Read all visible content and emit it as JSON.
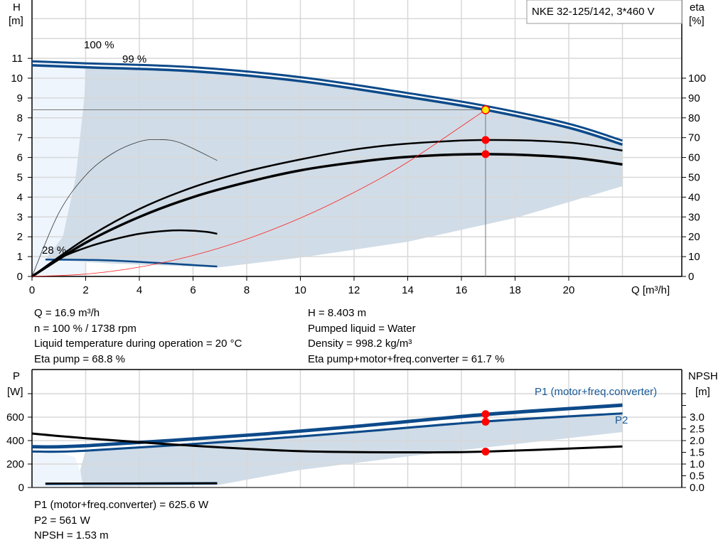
{
  "chart_data": [
    {
      "type": "line",
      "title": "NKE 32-125/142, 3*460 V",
      "xlabel": "Q [m³/h]",
      "ylabel": "H",
      "ylabel_unit": "[m]",
      "y2label": "eta",
      "y2label_unit": "[%]",
      "xlim": [
        0,
        23.5
      ],
      "ylim": [
        0,
        14
      ],
      "y2lim": [
        0,
        140
      ],
      "x_ticks": [
        "0",
        "2",
        "4",
        "6",
        "8",
        "10",
        "12",
        "14",
        "16",
        "18",
        "20"
      ],
      "y_ticks": [
        "0",
        "1",
        "2",
        "3",
        "4",
        "5",
        "6",
        "7",
        "8",
        "9",
        "10",
        "11"
      ],
      "y2_ticks": [
        "0",
        "10",
        "20",
        "30",
        "40",
        "50",
        "60",
        "70",
        "80",
        "90",
        "100"
      ],
      "grid": true,
      "annotations": [
        "100 %",
        "99 %",
        "28 %"
      ],
      "series": [
        {
          "id": "qh100",
          "axis": "H",
          "color": "#0d4a8a",
          "points": [
            [
              0,
              10.85
            ],
            [
              2,
              10.75
            ],
            [
              6,
              10.55
            ],
            [
              10,
              10.05
            ],
            [
              14,
              9.25
            ],
            [
              16.9,
              8.6
            ],
            [
              20,
              7.7
            ],
            [
              22,
              6.85
            ]
          ]
        },
        {
          "id": "qh99",
          "axis": "H",
          "color": "#0d4a8a",
          "points": [
            [
              0,
              10.65
            ],
            [
              2,
              10.55
            ],
            [
              6,
              10.35
            ],
            [
              10,
              9.85
            ],
            [
              14,
              9.05
            ],
            [
              16.9,
              8.403
            ],
            [
              20,
              7.5
            ],
            [
              22,
              6.65
            ]
          ]
        },
        {
          "id": "qh28",
          "axis": "H",
          "color": "#0d4a8a",
          "points": [
            [
              0.5,
              0.85
            ],
            [
              3,
              0.8
            ],
            [
              6.9,
              0.5
            ]
          ]
        },
        {
          "id": "eta_pump",
          "axis": "eta",
          "color": "#000000",
          "points": [
            [
              0,
              0
            ],
            [
              2,
              19
            ],
            [
              4,
              34
            ],
            [
              6,
              45
            ],
            [
              8,
              53
            ],
            [
              10,
              59
            ],
            [
              12,
              64
            ],
            [
              14,
              67
            ],
            [
              16.9,
              68.8
            ],
            [
              20,
              67.5
            ],
            [
              22,
              63.5
            ]
          ]
        },
        {
          "id": "eta_total",
          "axis": "eta",
          "color": "#000000",
          "points": [
            [
              0,
              0
            ],
            [
              2,
              17
            ],
            [
              4,
              30
            ],
            [
              6,
              40
            ],
            [
              8,
              47.5
            ],
            [
              10,
              53.5
            ],
            [
              12,
              57.5
            ],
            [
              14,
              60.3
            ],
            [
              16.9,
              61.7
            ],
            [
              20,
              60
            ],
            [
              22,
              56.5
            ]
          ]
        },
        {
          "id": "eta_pump_28",
          "axis": "eta",
          "color": "#333333",
          "points": [
            [
              0,
              0
            ],
            [
              1,
              32
            ],
            [
              2,
              51
            ],
            [
              3,
              62
            ],
            [
              4,
              68
            ],
            [
              4.7,
              69
            ],
            [
              5.5,
              67.5
            ],
            [
              6.9,
              58.5
            ]
          ]
        },
        {
          "id": "eta_total_28",
          "axis": "eta",
          "color": "#000000",
          "points": [
            [
              0,
              0
            ],
            [
              1,
              9
            ],
            [
              2,
              14.5
            ],
            [
              3,
              18.5
            ],
            [
              4,
              21.5
            ],
            [
              5,
              23
            ],
            [
              5.7,
              23.2
            ],
            [
              6.5,
              22.5
            ],
            [
              6.9,
              21.5
            ]
          ]
        },
        {
          "id": "system_curve",
          "axis": "H",
          "color": "#ff2020",
          "points": [
            [
              0,
              0
            ],
            [
              2,
              0.118
            ],
            [
              4,
              0.471
            ],
            [
              6,
              1.059
            ],
            [
              8,
              1.883
            ],
            [
              10,
              2.942
            ],
            [
              12,
              4.237
            ],
            [
              14,
              5.766
            ],
            [
              16.9,
              8.403
            ]
          ]
        }
      ],
      "duty_point": {
        "Q": 16.9,
        "H": 8.403,
        "eta_pump": 68.8,
        "eta_total": 61.7
      }
    },
    {
      "type": "line",
      "xlim": [
        0,
        23.5
      ],
      "ylabel": "P",
      "ylabel_unit": "[W]",
      "y2label": "NPSH",
      "y2label_unit": "[m]",
      "y_ticks": [
        "0",
        "200",
        "400",
        "600"
      ],
      "y2_ticks": [
        "0.0",
        "0.5",
        "1.0",
        "1.5",
        "2.0",
        "2.5",
        "3.0"
      ],
      "ylim": [
        0,
        1000
      ],
      "y2lim": [
        0,
        5
      ],
      "grid": true,
      "series": [
        {
          "id": "p1",
          "name": "P1 (motor+freq.converter)",
          "axis": "P",
          "color": "#0d4a8a",
          "points": [
            [
              0,
              350
            ],
            [
              2,
              358
            ],
            [
              8,
              448
            ],
            [
              12,
              522
            ],
            [
              16.9,
              625.6
            ],
            [
              22,
              705
            ]
          ]
        },
        {
          "id": "p1_99",
          "axis": "P",
          "color": "#0d4a8a",
          "points": [
            [
              0,
              338
            ],
            [
              2,
              346
            ],
            [
              8,
              436
            ],
            [
              12,
              510
            ],
            [
              16.9,
              612
            ],
            [
              22,
              692
            ]
          ]
        },
        {
          "id": "p2",
          "name": "P2",
          "axis": "P",
          "color": "#0d4a8a",
          "points": [
            [
              0,
              305
            ],
            [
              2,
              312
            ],
            [
              8,
              400
            ],
            [
              12,
              470
            ],
            [
              16.9,
              561
            ],
            [
              22,
              630
            ]
          ]
        },
        {
          "id": "p2_100",
          "axis": "P",
          "color": "#0d4a8a",
          "points": [
            [
              0,
              313
            ],
            [
              2,
              320
            ],
            [
              8,
              408
            ],
            [
              12,
              478
            ],
            [
              16.9,
              570
            ],
            [
              22,
              638
            ]
          ]
        },
        {
          "id": "npsh",
          "axis": "NPSH",
          "color": "#000000",
          "points": [
            [
              0,
              2.3
            ],
            [
              2,
              2.1
            ],
            [
              6,
              1.78
            ],
            [
              10,
              1.55
            ],
            [
              14,
              1.5
            ],
            [
              16.9,
              1.53
            ],
            [
              22,
              1.75
            ]
          ]
        },
        {
          "id": "p1_28",
          "axis": "P",
          "color": "#0d4a8a",
          "points": [
            [
              0.5,
              35
            ],
            [
              6.9,
              40
            ]
          ]
        },
        {
          "id": "p2_28",
          "axis": "P",
          "color": "#0d4a8a",
          "points": [
            [
              0.5,
              26
            ],
            [
              6.9,
              30
            ]
          ]
        },
        {
          "id": "npsh_28",
          "axis": "NPSH",
          "color": "#000000",
          "points": [
            [
              0.5,
              0.17
            ],
            [
              6.9,
              0.18
            ]
          ]
        }
      ],
      "duty_point": {
        "Q": 16.9,
        "P1": 625.6,
        "P2": 561,
        "NPSH": 1.53
      }
    }
  ],
  "info_top_left": [
    "Q = 16.9 m³/h",
    "n = 100 % / 1738 rpm",
    "Liquid temperature during operation = 20 °C",
    "Eta pump = 68.8 %"
  ],
  "info_top_right": [
    "H = 8.403 m",
    "Pumped liquid = Water",
    "Density = 998.2 kg/m³",
    "Eta pump+motor+freq.converter = 61.7 %"
  ],
  "info_bottom": [
    "P1 (motor+freq.converter) = 625.6 W",
    "P2 = 561 W",
    "NPSH = 1.53 m"
  ],
  "colors": {
    "curve_blue": "#0d4a8a",
    "area_gray": "#d0dce7",
    "area_light": "#eef5fc",
    "duty_point": "#ff0000",
    "duty_fill": "#ffee00",
    "grid": "#d8d8d8"
  }
}
